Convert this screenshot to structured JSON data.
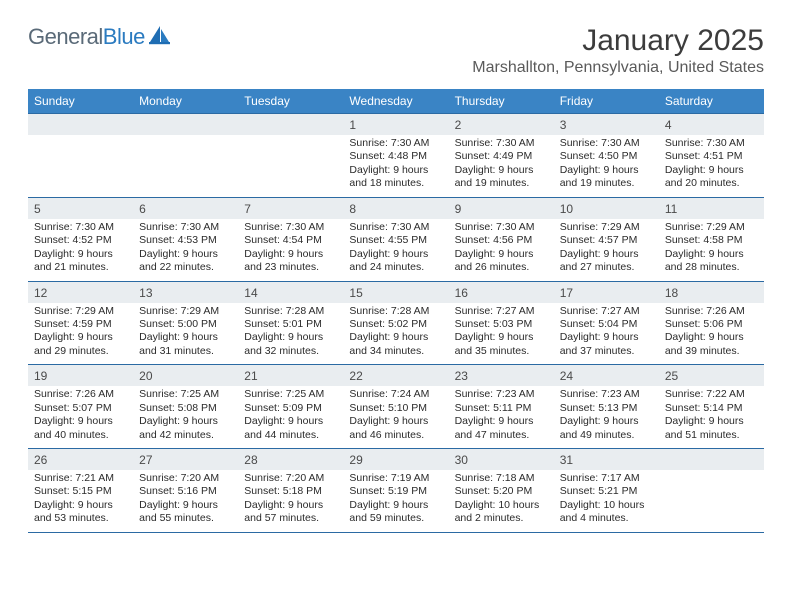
{
  "brand": {
    "part1": "General",
    "part2": "Blue"
  },
  "title": "January 2025",
  "location": "Marshallton, Pennsylvania, United States",
  "colors": {
    "header_bg": "#3a84c5",
    "header_text": "#ffffff",
    "row_border": "#2b6aa3",
    "daynum_bg": "#e9edf0",
    "body_text": "#2b2b2b",
    "title_text": "#3c3c3c",
    "location_text": "#5a5a5a",
    "logo_general": "#5a6a78",
    "logo_blue": "#2b7bc0"
  },
  "weekdays": [
    "Sunday",
    "Monday",
    "Tuesday",
    "Wednesday",
    "Thursday",
    "Friday",
    "Saturday"
  ],
  "weeks": [
    [
      null,
      null,
      null,
      {
        "n": "1",
        "sr": "7:30 AM",
        "ss": "4:48 PM",
        "dl": "9 hours and 18 minutes."
      },
      {
        "n": "2",
        "sr": "7:30 AM",
        "ss": "4:49 PM",
        "dl": "9 hours and 19 minutes."
      },
      {
        "n": "3",
        "sr": "7:30 AM",
        "ss": "4:50 PM",
        "dl": "9 hours and 19 minutes."
      },
      {
        "n": "4",
        "sr": "7:30 AM",
        "ss": "4:51 PM",
        "dl": "9 hours and 20 minutes."
      }
    ],
    [
      {
        "n": "5",
        "sr": "7:30 AM",
        "ss": "4:52 PM",
        "dl": "9 hours and 21 minutes."
      },
      {
        "n": "6",
        "sr": "7:30 AM",
        "ss": "4:53 PM",
        "dl": "9 hours and 22 minutes."
      },
      {
        "n": "7",
        "sr": "7:30 AM",
        "ss": "4:54 PM",
        "dl": "9 hours and 23 minutes."
      },
      {
        "n": "8",
        "sr": "7:30 AM",
        "ss": "4:55 PM",
        "dl": "9 hours and 24 minutes."
      },
      {
        "n": "9",
        "sr": "7:30 AM",
        "ss": "4:56 PM",
        "dl": "9 hours and 26 minutes."
      },
      {
        "n": "10",
        "sr": "7:29 AM",
        "ss": "4:57 PM",
        "dl": "9 hours and 27 minutes."
      },
      {
        "n": "11",
        "sr": "7:29 AM",
        "ss": "4:58 PM",
        "dl": "9 hours and 28 minutes."
      }
    ],
    [
      {
        "n": "12",
        "sr": "7:29 AM",
        "ss": "4:59 PM",
        "dl": "9 hours and 29 minutes."
      },
      {
        "n": "13",
        "sr": "7:29 AM",
        "ss": "5:00 PM",
        "dl": "9 hours and 31 minutes."
      },
      {
        "n": "14",
        "sr": "7:28 AM",
        "ss": "5:01 PM",
        "dl": "9 hours and 32 minutes."
      },
      {
        "n": "15",
        "sr": "7:28 AM",
        "ss": "5:02 PM",
        "dl": "9 hours and 34 minutes."
      },
      {
        "n": "16",
        "sr": "7:27 AM",
        "ss": "5:03 PM",
        "dl": "9 hours and 35 minutes."
      },
      {
        "n": "17",
        "sr": "7:27 AM",
        "ss": "5:04 PM",
        "dl": "9 hours and 37 minutes."
      },
      {
        "n": "18",
        "sr": "7:26 AM",
        "ss": "5:06 PM",
        "dl": "9 hours and 39 minutes."
      }
    ],
    [
      {
        "n": "19",
        "sr": "7:26 AM",
        "ss": "5:07 PM",
        "dl": "9 hours and 40 minutes."
      },
      {
        "n": "20",
        "sr": "7:25 AM",
        "ss": "5:08 PM",
        "dl": "9 hours and 42 minutes."
      },
      {
        "n": "21",
        "sr": "7:25 AM",
        "ss": "5:09 PM",
        "dl": "9 hours and 44 minutes."
      },
      {
        "n": "22",
        "sr": "7:24 AM",
        "ss": "5:10 PM",
        "dl": "9 hours and 46 minutes."
      },
      {
        "n": "23",
        "sr": "7:23 AM",
        "ss": "5:11 PM",
        "dl": "9 hours and 47 minutes."
      },
      {
        "n": "24",
        "sr": "7:23 AM",
        "ss": "5:13 PM",
        "dl": "9 hours and 49 minutes."
      },
      {
        "n": "25",
        "sr": "7:22 AM",
        "ss": "5:14 PM",
        "dl": "9 hours and 51 minutes."
      }
    ],
    [
      {
        "n": "26",
        "sr": "7:21 AM",
        "ss": "5:15 PM",
        "dl": "9 hours and 53 minutes."
      },
      {
        "n": "27",
        "sr": "7:20 AM",
        "ss": "5:16 PM",
        "dl": "9 hours and 55 minutes."
      },
      {
        "n": "28",
        "sr": "7:20 AM",
        "ss": "5:18 PM",
        "dl": "9 hours and 57 minutes."
      },
      {
        "n": "29",
        "sr": "7:19 AM",
        "ss": "5:19 PM",
        "dl": "9 hours and 59 minutes."
      },
      {
        "n": "30",
        "sr": "7:18 AM",
        "ss": "5:20 PM",
        "dl": "10 hours and 2 minutes."
      },
      {
        "n": "31",
        "sr": "7:17 AM",
        "ss": "5:21 PM",
        "dl": "10 hours and 4 minutes."
      },
      null
    ]
  ],
  "labels": {
    "sunrise": "Sunrise:",
    "sunset": "Sunset:",
    "daylight": "Daylight:"
  }
}
